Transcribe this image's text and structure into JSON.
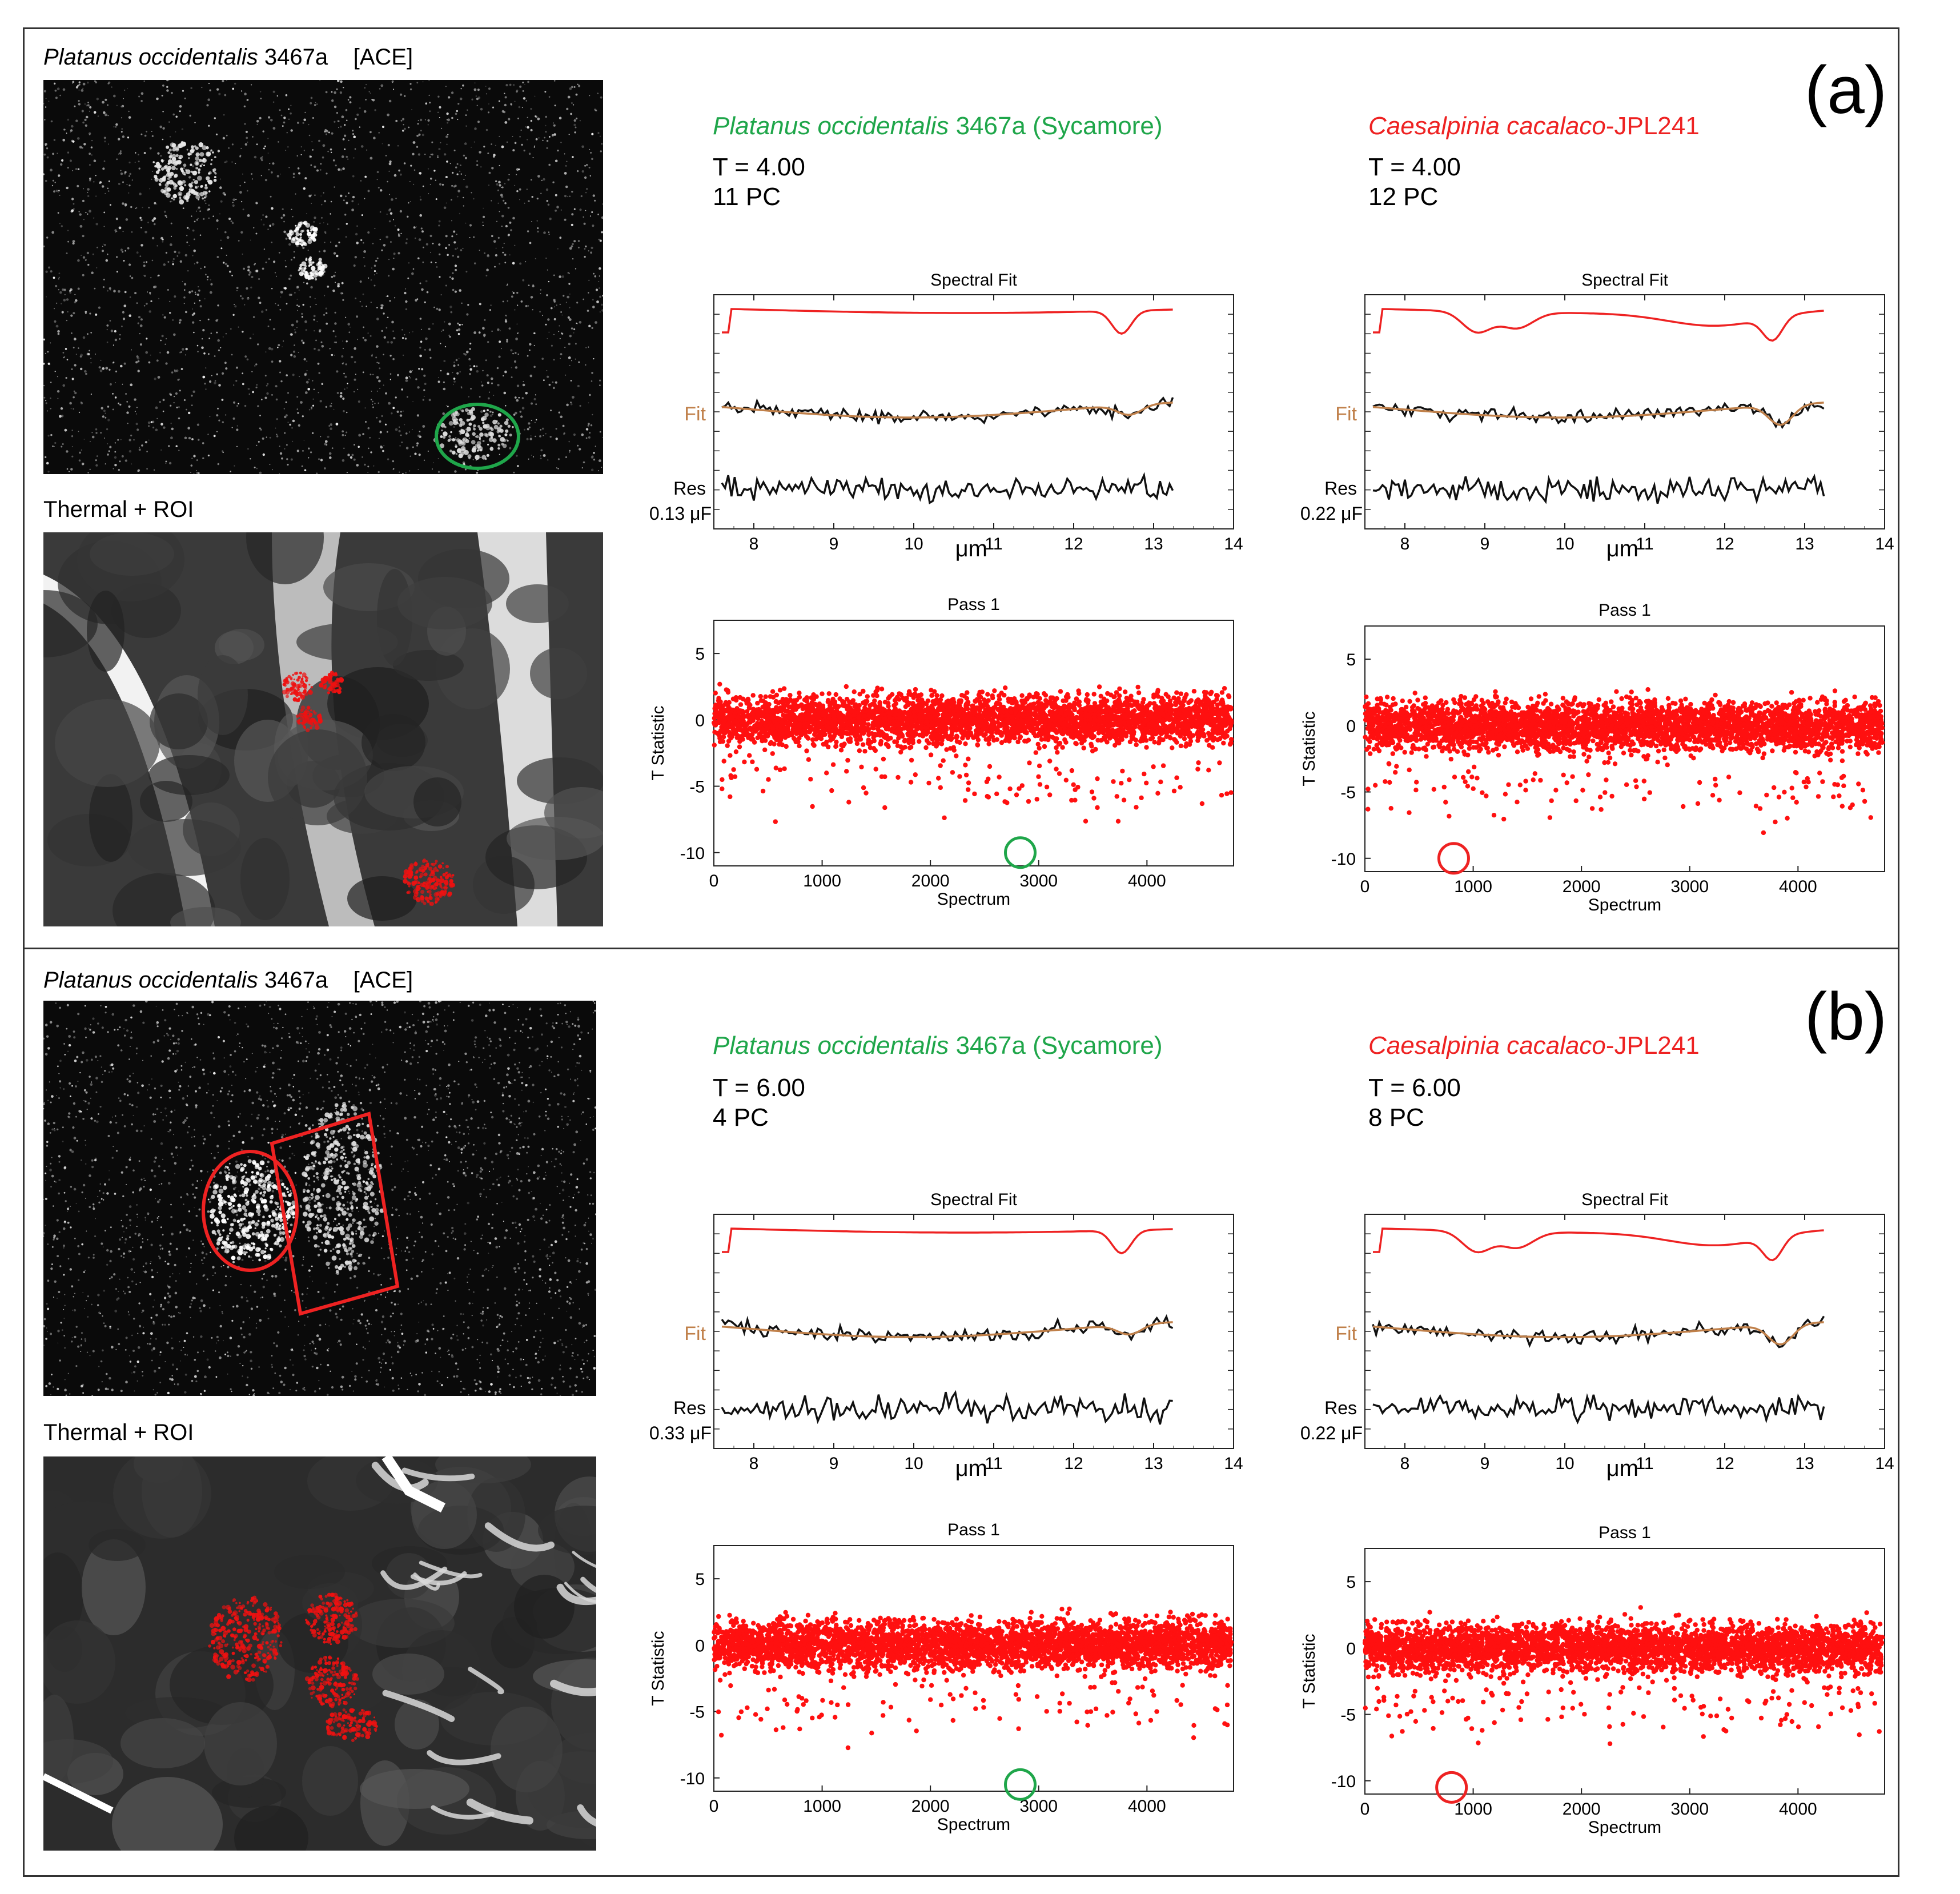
{
  "colors": {
    "green": "#1fa64a",
    "red": "#ee2222",
    "fit": "#c0804a",
    "black": "#111111"
  },
  "panels": [
    {
      "letter": "(a)",
      "ace_label": {
        "species": "Platanus occidentalis",
        "rest": " 3467a    [ACE]"
      },
      "thermal_label": "Thermal  + ROI",
      "left": {
        "species": "Platanus occidentalis",
        "suffix": " 3467a (Sycamore)",
        "t": "T = 4.00",
        "pc": "11 PC",
        "res_label": "Res",
        "res_value": "0.13 μF"
      },
      "right": {
        "species": "Caesalpinia cacalaco",
        "suffix": "-JPL241",
        "t": "T = 4.00",
        "pc": "12 PC",
        "res_label": "Res",
        "res_value": "0.22 μF"
      }
    },
    {
      "letter": "(b)",
      "ace_label": {
        "species": "Platanus occidentalis",
        "rest": " 3467a    [ACE]"
      },
      "thermal_label": "Thermal  + ROI",
      "left": {
        "species": "Platanus occidentalis",
        "suffix": " 3467a (Sycamore)",
        "t": "T = 6.00",
        "pc": "4 PC",
        "res_label": "Res",
        "res_value": "0.33 μF"
      },
      "right": {
        "species": "Caesalpinia cacalaco",
        "suffix": "-JPL241",
        "t": "T = 6.00",
        "pc": "8 PC",
        "res_label": "Res",
        "res_value": "0.22 μF"
      }
    }
  ],
  "chart_data": [
    {
      "type": "line",
      "title": "Spectral Fit",
      "xlabel": "μm",
      "xticks": [
        8,
        9,
        10,
        11,
        12,
        13,
        14
      ],
      "xlim": [
        7.5,
        14
      ],
      "fit_label": "Fit",
      "series": [
        "top spectrum (red)",
        "data (black)",
        "fit (brown)",
        "residual (black)"
      ]
    },
    {
      "type": "scatter",
      "title": "Pass 1",
      "xlabel": "Spectrum",
      "ylabel": "T Statistic",
      "xticks": [
        0,
        1000,
        2000,
        3000,
        4000
      ],
      "xlim": [
        0,
        4800
      ],
      "yticks": [
        5,
        0,
        -5,
        -10
      ],
      "ylim": [
        -11,
        7.5
      ],
      "highlight": {
        "a_left": {
          "x": 2830,
          "y": -10,
          "color": "green"
        },
        "a_right": {
          "x": 820,
          "y": -10,
          "color": "red"
        },
        "b_left": {
          "x": 2830,
          "y": -10.5,
          "color": "green"
        },
        "b_right": {
          "x": 800,
          "y": -10.5,
          "color": "red"
        }
      }
    }
  ]
}
